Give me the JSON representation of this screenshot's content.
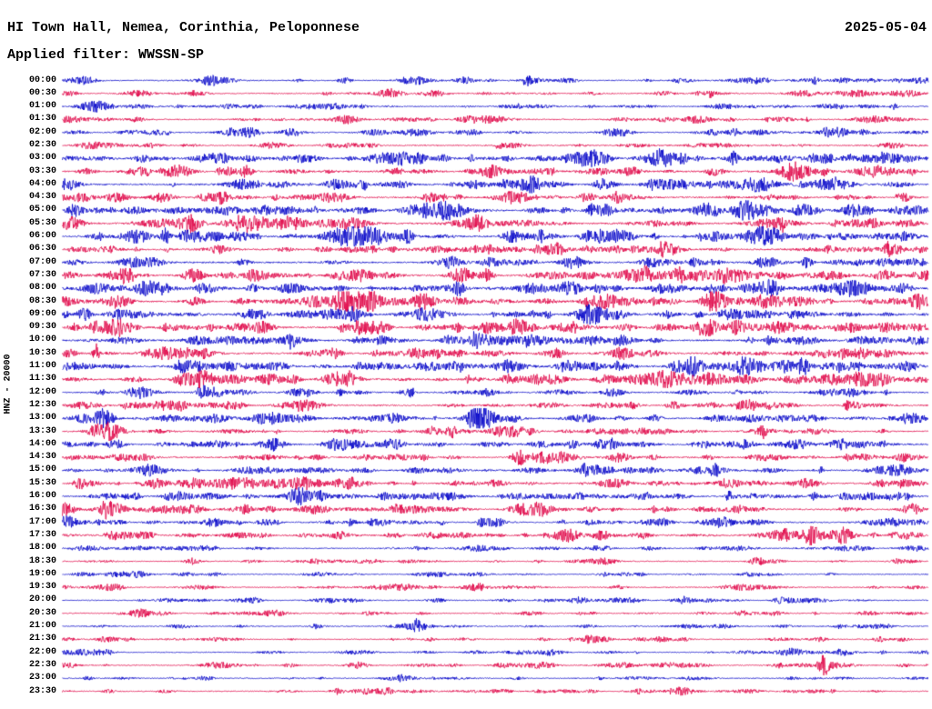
{
  "header": {
    "station_title": "HI Town Hall, Nemea, Corinthia, Peloponnese",
    "date": "2025-05-04",
    "filter_label": "Applied filter: WWSSN-SP"
  },
  "axis": {
    "channel_label": "HNZ - 20000"
  },
  "chart_data": {
    "type": "line",
    "subtype": "seismogram-helicorder",
    "title": "HI Town Hall, Nemea, Corinthia, Peloponnese",
    "date": "2025-05-04",
    "filter": "WWSSN-SP",
    "channel": "HNZ",
    "scale_counts": 20000,
    "minutes_per_row": 30,
    "row_count": 48,
    "row_times": [
      "00:00",
      "00:30",
      "01:00",
      "01:30",
      "02:00",
      "02:30",
      "03:00",
      "03:30",
      "04:00",
      "04:30",
      "05:00",
      "05:30",
      "06:00",
      "06:30",
      "07:00",
      "07:30",
      "08:00",
      "08:30",
      "09:00",
      "09:30",
      "10:00",
      "10:30",
      "11:00",
      "11:30",
      "12:00",
      "12:30",
      "13:00",
      "13:30",
      "14:00",
      "14:30",
      "15:00",
      "15:30",
      "16:00",
      "16:30",
      "17:00",
      "17:30",
      "18:00",
      "18:30",
      "19:00",
      "19:30",
      "20:00",
      "20:30",
      "21:00",
      "21:30",
      "22:00",
      "22:30",
      "23:00",
      "23:30"
    ],
    "colors": {
      "even_rows": "#0000c8",
      "odd_rows": "#e00045",
      "background": "#ffffff",
      "text": "#000000"
    },
    "trace_color_pattern": "alternating blue/red per 30-minute row",
    "grid": false,
    "legend": false,
    "events": [
      {
        "row_index": 0,
        "time": "00:00",
        "x_frac": 0.536,
        "amp": 5,
        "width": 2.5
      },
      {
        "row_index": 0,
        "time": "00:00",
        "x_frac": 0.869,
        "amp": 2.5,
        "width": 2
      },
      {
        "row_index": 1,
        "time": "00:30",
        "x_frac": 0.746,
        "amp": 3.5,
        "width": 2.5
      },
      {
        "row_index": 5,
        "time": "02:30",
        "x_frac": 0.505,
        "amp": 2.5,
        "width": 2
      },
      {
        "row_index": 7,
        "time": "03:30",
        "x_frac": 0.181,
        "amp": 2.5,
        "width": 2
      },
      {
        "row_index": 7,
        "time": "03:30",
        "x_frac": 0.879,
        "amp": 3,
        "width": 3
      },
      {
        "row_index": 9,
        "time": "04:30",
        "x_frac": 0.184,
        "amp": 5,
        "width": 3.5
      },
      {
        "row_index": 11,
        "time": "05:30",
        "x_frac": 0.205,
        "amp": 4,
        "width": 3
      },
      {
        "row_index": 11,
        "time": "05:30",
        "x_frac": 0.832,
        "amp": 4.5,
        "width": 3.5
      },
      {
        "row_index": 13,
        "time": "06:30",
        "x_frac": 0.953,
        "amp": 4.5,
        "width": 3
      },
      {
        "row_index": 15,
        "time": "07:30",
        "x_frac": 0.711,
        "amp": 5.5,
        "width": 3
      },
      {
        "row_index": 19,
        "time": "09:30",
        "x_frac": 0.322,
        "amp": 4,
        "width": 3
      },
      {
        "row_index": 20,
        "time": "10:00",
        "x_frac": 0.263,
        "amp": 6,
        "width": 3
      },
      {
        "row_index": 23,
        "time": "11:30",
        "x_frac": 0.877,
        "amp": 3,
        "width": 2.5
      },
      {
        "row_index": 24,
        "time": "12:00",
        "x_frac": 0.16,
        "amp": 5.5,
        "width": 3
      },
      {
        "row_index": 24,
        "time": "12:00",
        "x_frac": 0.32,
        "amp": 3.5,
        "width": 2.5
      },
      {
        "row_index": 25,
        "time": "12:30",
        "x_frac": 0.905,
        "amp": 3,
        "width": 2.5
      },
      {
        "row_index": 26,
        "time": "13:00",
        "x_frac": 0.483,
        "amp": 5.5,
        "width": 3
      },
      {
        "row_index": 28,
        "time": "14:00",
        "x_frac": 0.947,
        "amp": 3,
        "width": 2.5
      },
      {
        "row_index": 30,
        "time": "15:00",
        "x_frac": 0.601,
        "amp": 3,
        "width": 2.5
      },
      {
        "row_index": 30,
        "time": "15:00",
        "x_frac": 0.753,
        "amp": 5.5,
        "width": 3
      },
      {
        "row_index": 31,
        "time": "15:30",
        "x_frac": 0.968,
        "amp": 3,
        "width": 2.5
      },
      {
        "row_index": 32,
        "time": "16:00",
        "x_frac": 0.769,
        "amp": 5,
        "width": 3
      },
      {
        "row_index": 32,
        "time": "16:00",
        "x_frac": 0.869,
        "amp": 4,
        "width": 3
      },
      {
        "row_index": 33,
        "time": "16:30",
        "x_frac": 0.049,
        "amp": 3,
        "width": 2.5
      },
      {
        "row_index": 34,
        "time": "17:00",
        "x_frac": 0.483,
        "amp": 4.5,
        "width": 2.5
      },
      {
        "row_index": 45,
        "time": "22:30",
        "x_frac": 0.877,
        "amp": 12,
        "width": 4
      },
      {
        "row_index": 46,
        "time": "23:00",
        "x_frac": 0.39,
        "amp": 2.5,
        "width": 2
      }
    ]
  }
}
